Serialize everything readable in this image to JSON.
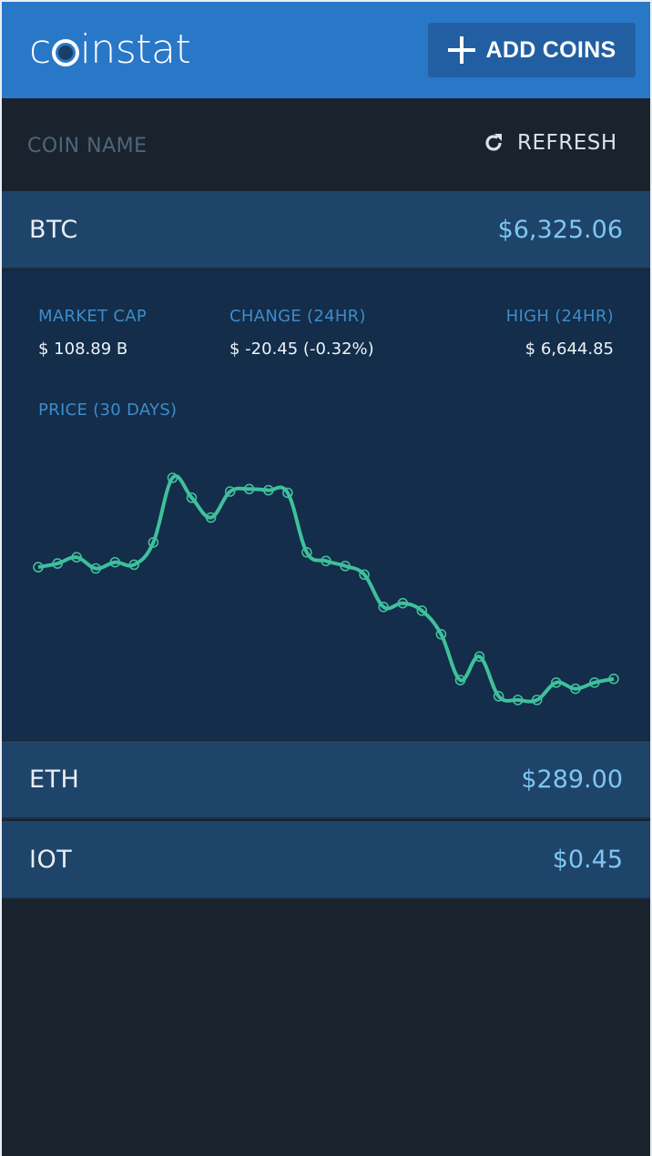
{
  "header": {
    "logo_prefix": "c",
    "logo_suffix": "instat",
    "add_coins_label": "ADD COINS"
  },
  "toolbar": {
    "column_name": "COIN NAME",
    "refresh_label": "REFRESH"
  },
  "coins": [
    {
      "symbol": "BTC",
      "price": "$6,325.06"
    },
    {
      "symbol": "ETH",
      "price": "$289.00"
    },
    {
      "symbol": "IOT",
      "price": "$0.45"
    }
  ],
  "detail": {
    "market_cap_label": "MARKET CAP",
    "market_cap_value": "$ 108.89 B",
    "change_label": "CHANGE (24HR)",
    "change_value": "$ -20.45 (-0.32%)",
    "high_label": "HIGH (24HR)",
    "high_value": "$ 6,644.85",
    "chart_label": "PRICE (30 DAYS)"
  },
  "chart_data": {
    "type": "line",
    "values": [
      6400,
      6415,
      6440,
      6395,
      6420,
      6410,
      6500,
      6760,
      6680,
      6600,
      6705,
      6715,
      6710,
      6700,
      6460,
      6425,
      6405,
      6370,
      6240,
      6255,
      6225,
      6130,
      5945,
      6040,
      5880,
      5865,
      5865,
      5935,
      5910,
      5935,
      5950
    ],
    "line_color": "#3fc09c",
    "marker_color": "#3fc09c"
  },
  "colors": {
    "header_bg": "#2978c8",
    "button_bg": "#225fa2",
    "row_bg": "#1e446a",
    "panel_bg": "#132d4a",
    "page_bg": "#1a232d",
    "price_text": "#7fc6f2",
    "label_text": "#3d8ccc"
  }
}
